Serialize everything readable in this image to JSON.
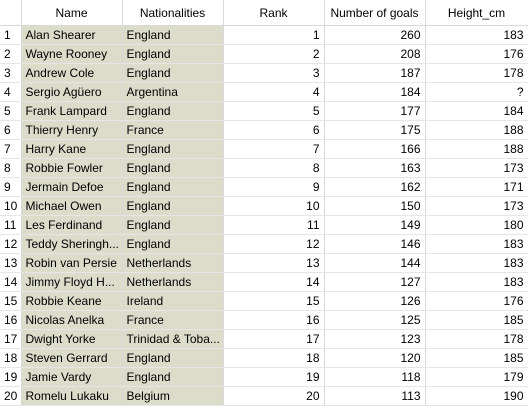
{
  "headers": [
    "",
    "Name",
    "Nationalities",
    "Rank",
    "Number of goals",
    "Height_cm"
  ],
  "rows": [
    [
      "1",
      "Alan Shearer",
      "England",
      "1",
      "260",
      "183"
    ],
    [
      "2",
      "Wayne Rooney",
      "England",
      "2",
      "208",
      "176"
    ],
    [
      "3",
      "Andrew Cole",
      "England",
      "3",
      "187",
      "178"
    ],
    [
      "4",
      "Sergio Agüero",
      "Argentina",
      "4",
      "184",
      "?"
    ],
    [
      "5",
      "Frank Lampard",
      "England",
      "5",
      "177",
      "184"
    ],
    [
      "6",
      "Thierry Henry",
      "France",
      "6",
      "175",
      "188"
    ],
    [
      "7",
      "Harry Kane",
      "England",
      "7",
      "166",
      "188"
    ],
    [
      "8",
      "Robbie Fowler",
      "England",
      "8",
      "163",
      "173"
    ],
    [
      "9",
      "Jermain Defoe",
      "England",
      "9",
      "162",
      "171"
    ],
    [
      "10",
      "Michael Owen",
      "England",
      "10",
      "150",
      "173"
    ],
    [
      "11",
      "Les Ferdinand",
      "England",
      "11",
      "149",
      "180"
    ],
    [
      "12",
      "Teddy Sheringh...",
      "England",
      "12",
      "146",
      "183"
    ],
    [
      "13",
      "Robin van Persie",
      "Netherlands",
      "13",
      "144",
      "183"
    ],
    [
      "14",
      "Jimmy Floyd H...",
      "Netherlands",
      "14",
      "127",
      "183"
    ],
    [
      "15",
      "Robbie Keane",
      "Ireland",
      "15",
      "126",
      "176"
    ],
    [
      "16",
      "Nicolas Anelka",
      "France",
      "16",
      "125",
      "185"
    ],
    [
      "17",
      "Dwight Yorke",
      "Trinidad & Toba...",
      "17",
      "123",
      "178"
    ],
    [
      "18",
      "Steven Gerrard",
      "England",
      "18",
      "120",
      "185"
    ],
    [
      "19",
      "Jamie Vardy",
      "England",
      "19",
      "118",
      "179"
    ],
    [
      "20",
      "Romelu Lukaku",
      "Belgium",
      "20",
      "113",
      "190"
    ]
  ]
}
